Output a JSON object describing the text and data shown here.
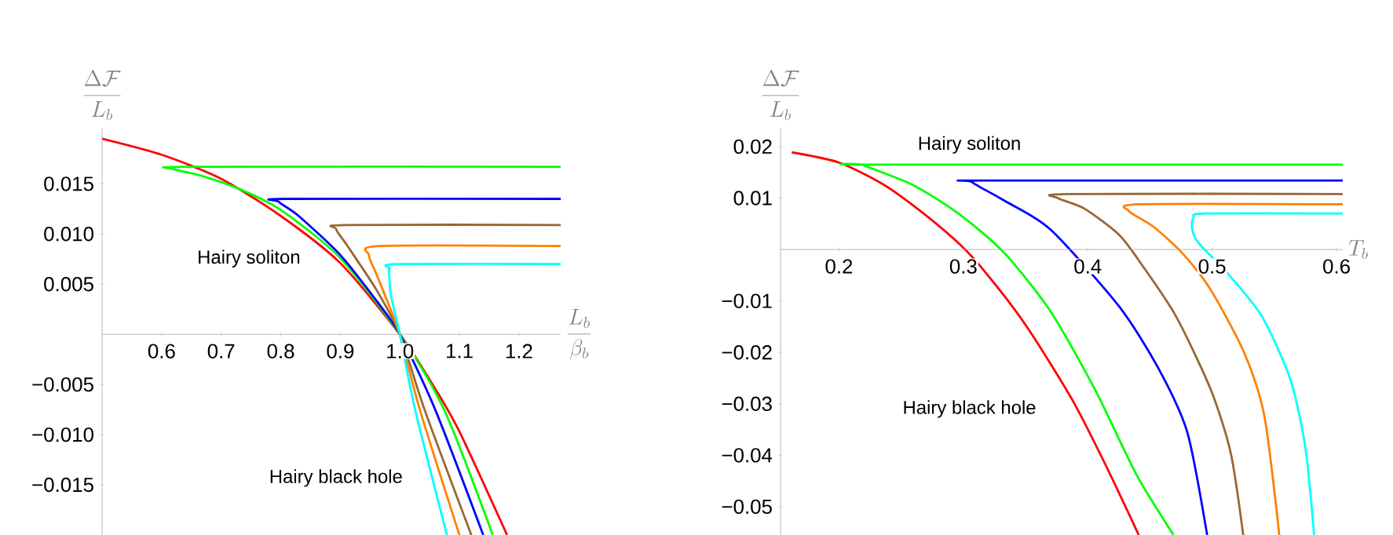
{
  "chart_data": [
    {
      "type": "line",
      "xlabel": "\\frac{L_b}{\\beta_b}",
      "ylabel": "\\frac{\\Delta\\mathcal{F}}{L_b}",
      "marker": "none",
      "line_style": "solid",
      "xlim": [
        0.5,
        1.27
      ],
      "ylim": [
        -0.02,
        0.0205
      ],
      "xticks": [
        0.6,
        0.7,
        0.8,
        0.9,
        {
          "value": 1.0,
          "label": "1.0"
        },
        1.1,
        1.2
      ],
      "yticks": [
        {
          "value": -0.015,
          "label": "−0.015"
        },
        {
          "value": -0.01,
          "label": "−0.010"
        },
        {
          "value": -0.005,
          "label": "−0.005"
        },
        0.005,
        {
          "value": 0.01,
          "label": "0.010"
        },
        0.015
      ],
      "annotations": [
        "Hairy soliton",
        "Hairy black hole"
      ],
      "series": [
        {
          "color": "#ff0000",
          "x": [
            0.5,
            0.6,
            0.7,
            0.8,
            0.9,
            1.0,
            1.06,
            1.1,
            1.18
          ],
          "values": [
            0.0195,
            0.0179,
            0.0155,
            0.0118,
            0.0071,
            0,
            -0.0055,
            -0.0097,
            -0.02
          ]
        },
        {
          "color": "#00ff00",
          "x": [
            1.27,
            0.65,
            0.618,
            0.667,
            0.73,
            0.8,
            0.9,
            1.0,
            1.075,
            1.156
          ],
          "values": [
            0.0167,
            0.0167,
            0.0165,
            0.0158,
            0.0145,
            0.0124,
            0.0076,
            0,
            -0.0076,
            -0.02
          ]
        },
        {
          "color": "#0000ff",
          "x": [
            1.27,
            0.81,
            0.797,
            0.83,
            0.9,
            0.96,
            1.0,
            1.06,
            1.14
          ],
          "values": [
            0.0135,
            0.0135,
            0.0132,
            0.0118,
            0.0079,
            0.0034,
            0,
            -0.0076,
            -0.02
          ]
        },
        {
          "color": "#996633",
          "x": [
            1.27,
            0.91,
            0.893,
            0.911,
            0.96,
            1.0,
            1.042,
            1.12
          ],
          "values": [
            0.0109,
            0.0109,
            0.0105,
            0.0089,
            0.0045,
            0,
            -0.0076,
            -0.02
          ]
        },
        {
          "color": "#ff8000",
          "x": [
            1.27,
            0.965,
            0.948,
            0.96,
            0.985,
            1.0,
            1.034,
            1.1
          ],
          "values": [
            0.0088,
            0.0088,
            0.0079,
            0.0061,
            0.0024,
            0,
            -0.0076,
            -0.02
          ]
        },
        {
          "color": "#00ffff",
          "x": [
            1.27,
            0.995,
            0.983,
            0.982,
            0.985,
            1.0,
            1.026,
            1.079
          ],
          "values": [
            0.007,
            0.007,
            0.0066,
            0.0061,
            0.0039,
            0,
            -0.0076,
            -0.02
          ]
        }
      ]
    },
    {
      "type": "line",
      "xlabel": "T_b",
      "ylabel": "\\frac{\\Delta\\mathcal{F}}{L_b}",
      "marker": "none",
      "line_style": "solid",
      "xlim": [
        0.153,
        0.605
      ],
      "ylim": [
        -0.0555,
        0.0235
      ],
      "xticks": [
        0.2,
        0.3,
        0.4,
        0.5,
        0.6
      ],
      "yticks": [
        {
          "value": -0.05,
          "label": "−0.05"
        },
        {
          "value": -0.04,
          "label": "−0.04"
        },
        {
          "value": -0.03,
          "label": "−0.03"
        },
        {
          "value": -0.02,
          "label": "−0.02"
        },
        {
          "value": -0.01,
          "label": "−0.01"
        },
        0.01,
        0.02
      ],
      "annotations": [
        "Hairy soliton",
        "Hairy black hole"
      ],
      "series": [
        {
          "color": "#ff0000",
          "x": [
            0.162,
            0.2,
            0.236,
            0.268,
            0.298,
            0.319,
            0.351,
            0.388,
            0.416,
            0.441
          ],
          "values": [
            0.0189,
            0.0169,
            0.0126,
            0.007,
            0.0008,
            -0.0048,
            -0.015,
            -0.0294,
            -0.0427,
            -0.0555
          ]
        },
        {
          "color": "#00ff00",
          "x": [
            0.605,
            0.225,
            0.2198,
            0.259,
            0.296,
            0.333,
            0.37,
            0.406,
            0.439,
            0.469
          ],
          "values": [
            0.0165,
            0.0165,
            0.0164,
            0.0126,
            0.007,
            -0.0007,
            -0.012,
            -0.0273,
            -0.0437,
            -0.0555
          ]
        },
        {
          "color": "#0000ff",
          "x": [
            0.605,
            0.315,
            0.307,
            0.333,
            0.37,
            0.425,
            0.457,
            0.48,
            0.496
          ],
          "values": [
            0.0134,
            0.0134,
            0.0131,
            0.0095,
            0.0039,
            -0.011,
            -0.0232,
            -0.0355,
            -0.0555
          ]
        },
        {
          "color": "#996633",
          "x": [
            0.605,
            0.385,
            0.376,
            0.397,
            0.425,
            0.443,
            0.471,
            0.499,
            0.515,
            0.525
          ],
          "values": [
            0.0108,
            0.0108,
            0.01,
            0.008,
            0.0029,
            -0.0028,
            -0.013,
            -0.0273,
            -0.0396,
            -0.0555
          ]
        },
        {
          "color": "#ff8000",
          "x": [
            0.605,
            0.442,
            0.433,
            0.453,
            0.476,
            0.499,
            0.526,
            0.542,
            0.554
          ],
          "values": [
            0.0088,
            0.0088,
            0.0075,
            0.0044,
            -0.0007,
            -0.0079,
            -0.0202,
            -0.0324,
            -0.0555
          ]
        },
        {
          "color": "#00ffff",
          "x": [
            0.605,
            0.495,
            0.485,
            0.484,
            0.489,
            0.513,
            0.54,
            0.563,
            0.575,
            0.582
          ],
          "values": [
            0.007,
            0.007,
            0.0062,
            0.0039,
            0.0013,
            -0.0048,
            -0.013,
            -0.0253,
            -0.0386,
            -0.0555
          ]
        }
      ]
    }
  ]
}
